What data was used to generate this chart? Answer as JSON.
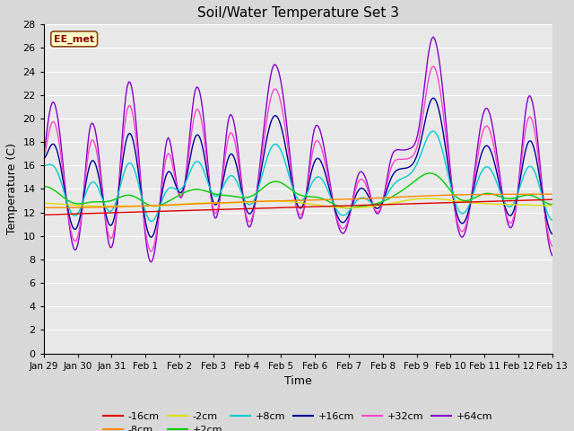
{
  "title": "Soil/Water Temperature Set 3",
  "xlabel": "Time",
  "ylabel": "Temperature (C)",
  "watermark": "EE_met",
  "ylim": [
    0,
    28
  ],
  "yticks": [
    0,
    2,
    4,
    6,
    8,
    10,
    12,
    14,
    16,
    18,
    20,
    22,
    24,
    26,
    28
  ],
  "xtick_labels": [
    "Jan 29",
    "Jan 30",
    "Jan 31",
    "Feb 1",
    "Feb 2",
    "Feb 3",
    "Feb 4",
    "Feb 5",
    "Feb 6",
    "Feb 7",
    "Feb 8",
    "Feb 9",
    "Feb 10",
    "Feb 11",
    "Feb 12",
    "Feb 13"
  ],
  "background_color": "#d8d8d8",
  "plot_bg_color": "#e8e8e8",
  "series_colors": {
    "-16cm": "#dd0000",
    "-8cm": "#ff8800",
    "-2cm": "#dddd00",
    "+2cm": "#00cc00",
    "+8cm": "#00cccc",
    "+16cm": "#000099",
    "+32cm": "#ff44cc",
    "+64cm": "#8800cc"
  },
  "figsize": [
    6.4,
    4.8
  ],
  "dpi": 100
}
